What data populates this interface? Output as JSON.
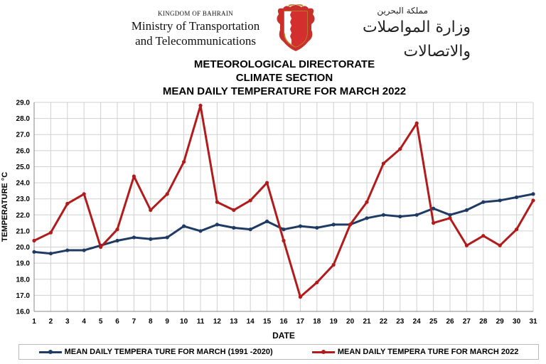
{
  "header": {
    "kingdom": "KINGDOM OF BAHRAIN",
    "ministry_line1": "Ministry of Transportation",
    "ministry_line2": "and Telecommunications",
    "arabic_small": "مملكة البحرين",
    "arabic_big": "وزارة المواصلات والاتصالات"
  },
  "headings": {
    "line1": "METEOROLOGICAL DIRECTORATE",
    "line2": "CLIMATE SECTION",
    "line3": "MEAN DAILY TEMPERATURE  FOR MARCH 2022"
  },
  "colors": {
    "normal": "#1f3b63",
    "year2022": "#b11b1b",
    "grid": "#d0d0d0"
  },
  "chart_data": {
    "type": "line",
    "xlabel": "DATE",
    "ylabel": "TEMPERATURE °C",
    "ylim": [
      16.0,
      29.0
    ],
    "ytick_step": 1.0,
    "grid": true,
    "legend_position": "bottom",
    "x": [
      1,
      2,
      3,
      4,
      5,
      6,
      7,
      8,
      9,
      10,
      11,
      12,
      13,
      14,
      15,
      16,
      17,
      18,
      19,
      20,
      21,
      22,
      23,
      24,
      25,
      26,
      27,
      28,
      29,
      30,
      31
    ],
    "series": [
      {
        "name": "MEAN DAILY TEMPERA TURE FOR MARCH (1991 -2020)",
        "color": "#1f3b63",
        "values": [
          19.7,
          19.6,
          19.8,
          19.8,
          20.1,
          20.4,
          20.6,
          20.5,
          20.6,
          21.3,
          21.0,
          21.4,
          21.2,
          21.1,
          21.6,
          21.1,
          21.3,
          21.2,
          21.4,
          21.4,
          21.8,
          22.0,
          21.9,
          22.0,
          22.4,
          22.0,
          22.3,
          22.8,
          22.9,
          23.1,
          23.3
        ]
      },
      {
        "name": "MEAN DAILY TEMPERA TURE FOR MARCH 2022",
        "color": "#b11b1b",
        "values": [
          20.4,
          20.9,
          22.7,
          23.3,
          20.0,
          21.1,
          24.4,
          22.3,
          23.3,
          25.3,
          28.8,
          22.8,
          22.3,
          22.9,
          24.0,
          20.4,
          16.9,
          17.8,
          18.9,
          21.4,
          22.8,
          25.2,
          26.1,
          27.7,
          21.5,
          21.8,
          20.1,
          20.7,
          20.1,
          21.1,
          22.9
        ]
      }
    ]
  }
}
